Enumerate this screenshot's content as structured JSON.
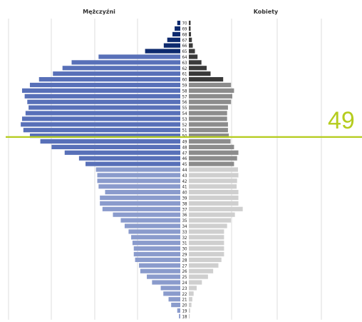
{
  "chart_data": {
    "type": "bar",
    "orientation": "population-pyramid",
    "left_header": "Mężczyźni",
    "right_header": "Kobiety",
    "ages": [
      70,
      69,
      68,
      67,
      66,
      65,
      64,
      63,
      62,
      61,
      60,
      59,
      58,
      57,
      56,
      55,
      54,
      53,
      52,
      51,
      50,
      49,
      48,
      47,
      46,
      45,
      44,
      43,
      42,
      41,
      40,
      39,
      38,
      37,
      36,
      35,
      34,
      33,
      32,
      31,
      30,
      29,
      28,
      27,
      26,
      25,
      24,
      23,
      22,
      21,
      20,
      19,
      18
    ],
    "series": [
      {
        "name": "Mężczyźni",
        "values": [
          0.7,
          1.3,
          1.8,
          3.0,
          3.8,
          8.1,
          18.8,
          25.0,
          27.1,
          29.3,
          32.5,
          34.6,
          36.4,
          35.8,
          35.2,
          34.9,
          35.6,
          36.4,
          36.7,
          36.1,
          34.6,
          32.2,
          29.6,
          26.6,
          23.3,
          21.8,
          19.4,
          19.1,
          19.1,
          18.8,
          17.3,
          18.5,
          18.5,
          17.9,
          15.5,
          13.7,
          12.8,
          11.9,
          11.3,
          11.0,
          10.7,
          10.7,
          10.4,
          9.5,
          9.2,
          7.7,
          6.5,
          4.5,
          3.9,
          2.7,
          2.1,
          0.7,
          0.3
        ],
        "colors_by_age_band": {
          "65-70": "#0d2a6e",
          "45-64": "#5870b8",
          "18-44": "#8a9bcc"
        }
      },
      {
        "name": "Kobiety",
        "values": [
          0.4,
          0.4,
          0.5,
          0.7,
          0.9,
          1.4,
          2.0,
          2.9,
          4.1,
          5.0,
          7.9,
          9.7,
          10.4,
          10.0,
          9.7,
          9.0,
          8.8,
          8.8,
          9.0,
          9.0,
          9.2,
          9.6,
          10.4,
          11.4,
          11.1,
          10.4,
          11.3,
          11.4,
          11.1,
          11.0,
          11.4,
          11.4,
          11.4,
          12.4,
          10.6,
          9.7,
          8.8,
          8.1,
          8.1,
          8.1,
          8.1,
          8.1,
          7.5,
          6.8,
          5.6,
          4.4,
          3.0,
          1.8,
          1.1,
          0.8,
          0.6,
          0.3,
          0.2
        ],
        "colors_by_age_band": {
          "60-65": "#3a3a3a",
          "45-59": "#8c8c8c",
          "18-44": "#cfcfcf"
        }
      }
    ],
    "xlim": [
      0,
      40
    ],
    "grid": true,
    "highlight": {
      "age": 49,
      "label": "49",
      "color": "#b5cc1e"
    }
  }
}
